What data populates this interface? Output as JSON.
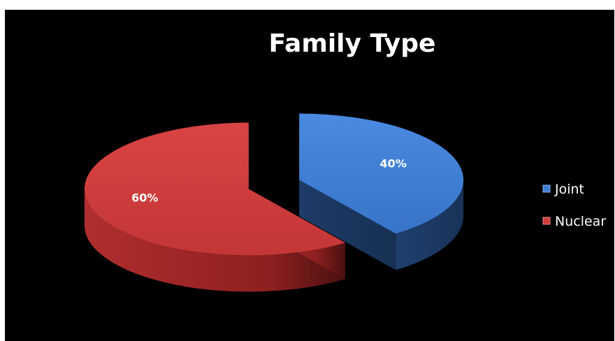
{
  "chart_data": {
    "type": "pie",
    "title": "Family Type",
    "categories": [
      "Joint",
      "Nuclear"
    ],
    "values": [
      40,
      60
    ],
    "data_labels": [
      "40%",
      "60%"
    ],
    "colors": [
      "#3f7fd4",
      "#d23c3c"
    ],
    "exploded": true,
    "three_d": true,
    "legend_position": "right",
    "background": "#000000"
  }
}
